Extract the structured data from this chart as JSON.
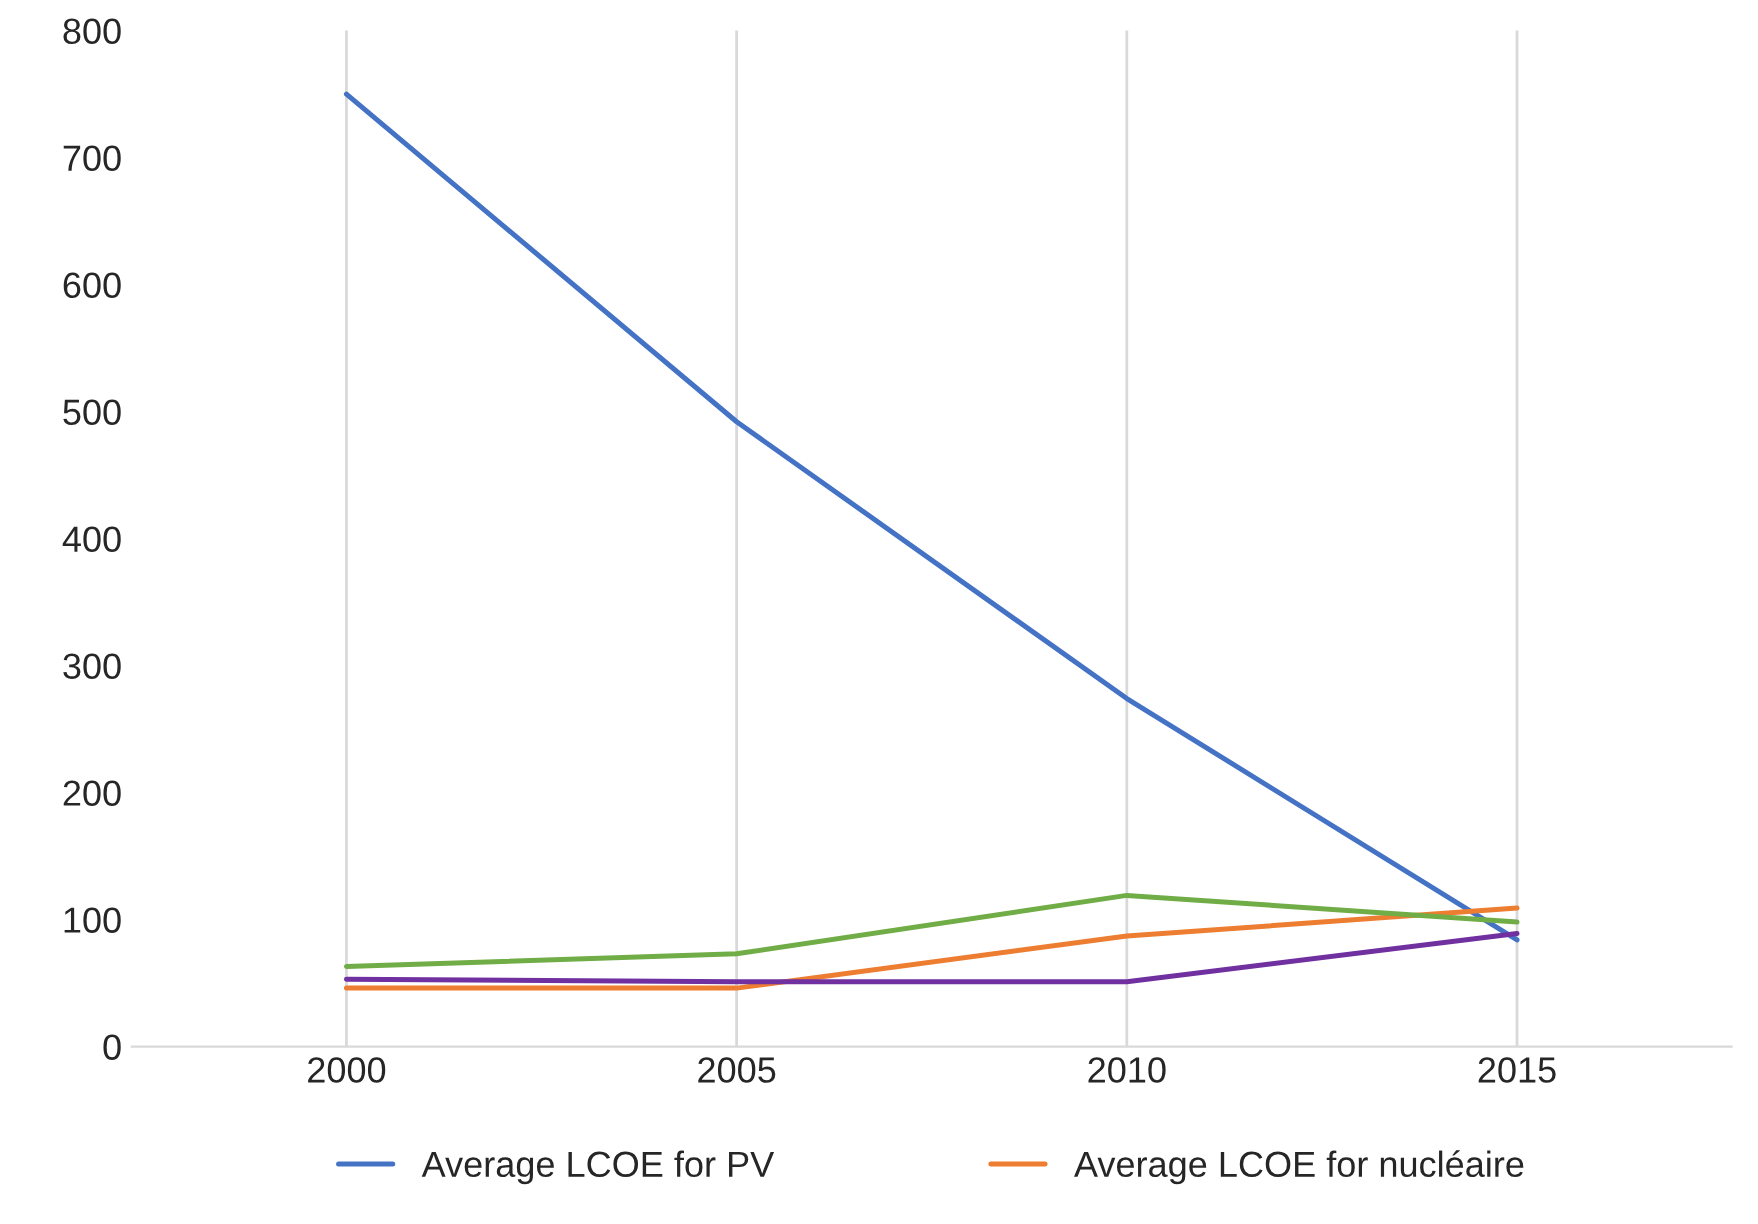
{
  "chart_data": {
    "type": "line",
    "categories": [
      "2000",
      "2005",
      "2010",
      "2015"
    ],
    "series": [
      {
        "name": "Average LCOE for PV",
        "color": "#4472c4",
        "values": [
          750,
          492,
          274,
          84
        ]
      },
      {
        "name": "Average LCOE for nucléaire",
        "color": "#ed7d31",
        "values": [
          46,
          46,
          87,
          109
        ]
      },
      {
        "color": "#70ad47",
        "values": [
          63,
          73,
          119,
          98
        ]
      },
      {
        "color": "#7030a0",
        "values": [
          53,
          51,
          51,
          89
        ]
      }
    ],
    "ylim": [
      0,
      800
    ],
    "yticks": [
      0,
      100,
      200,
      300,
      400,
      500,
      600,
      700,
      800
    ],
    "grid": "x",
    "legend": "bottom",
    "marker": "none",
    "line_style": "solid"
  }
}
